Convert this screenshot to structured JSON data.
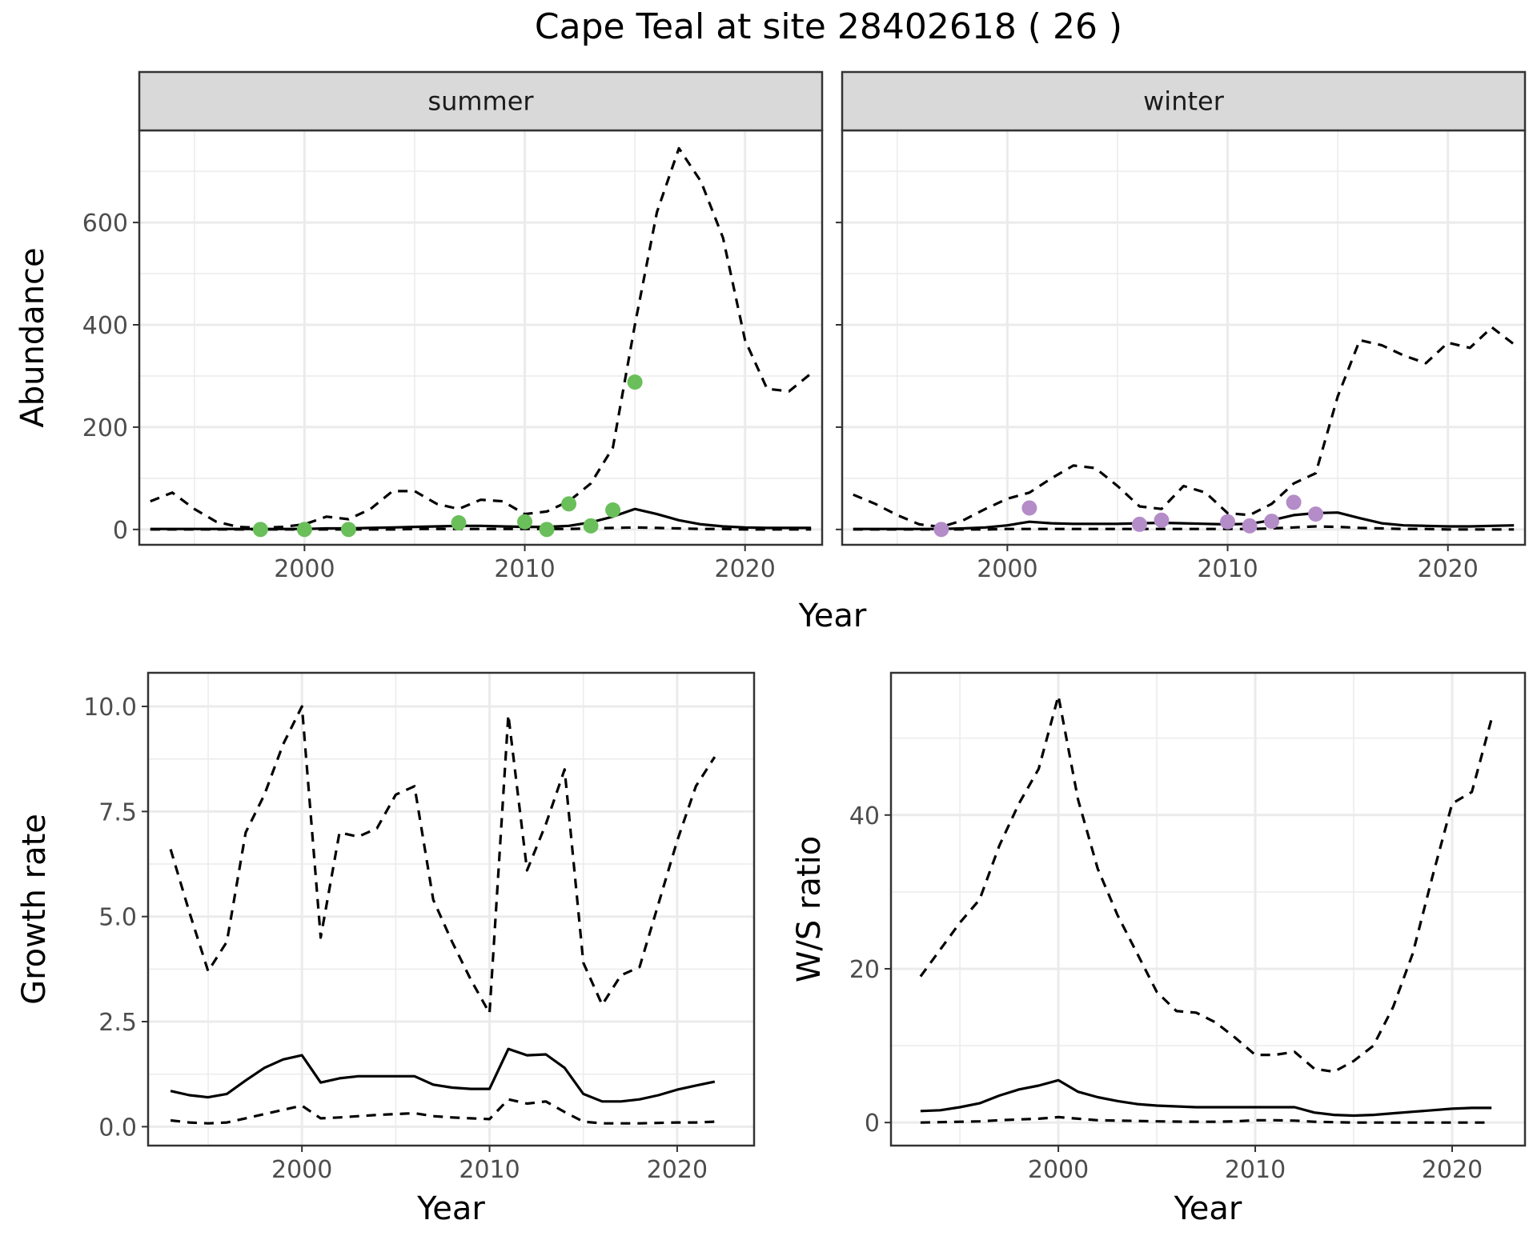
{
  "title": "Cape Teal at site 28402618 ( 26 )",
  "colors": {
    "summer_points": "#6ABF5A",
    "winter_points": "#B48CC8",
    "line": "#000000",
    "strip_fill": "#D9D9D9",
    "grid": "#EBEBEB"
  },
  "chart_data": [
    {
      "type": "line",
      "panel": "summer",
      "strip_label": "summer",
      "xlabel": "Year",
      "ylabel": "Abundance",
      "xlim": [
        1992.5,
        2023.5
      ],
      "ylim": [
        -30,
        780
      ],
      "xticks": [
        2000,
        2010,
        2020
      ],
      "yticks": [
        0,
        200,
        400,
        600
      ],
      "grid": true,
      "x": [
        1993,
        1994,
        1995,
        1996,
        1997,
        1998,
        1999,
        2000,
        2001,
        2002,
        2003,
        2004,
        2005,
        2006,
        2007,
        2008,
        2009,
        2010,
        2011,
        2012,
        2013,
        2014,
        2015,
        2016,
        2017,
        2018,
        2019,
        2020,
        2021,
        2022,
        2023
      ],
      "series": [
        {
          "style": "solid",
          "values": [
            1,
            1,
            1,
            1,
            1,
            1,
            1,
            1,
            2,
            2,
            3,
            4,
            5,
            6,
            7,
            7,
            6,
            5,
            5,
            7,
            14,
            25,
            40,
            30,
            18,
            10,
            6,
            4,
            3,
            3,
            3
          ]
        },
        {
          "style": "dashed",
          "values": [
            55,
            72,
            40,
            15,
            5,
            3,
            5,
            10,
            25,
            20,
            40,
            75,
            75,
            50,
            40,
            58,
            55,
            30,
            35,
            55,
            90,
            160,
            400,
            620,
            745,
            680,
            570,
            370,
            275,
            270,
            305
          ]
        },
        {
          "style": "dashed",
          "values": [
            0,
            0,
            0,
            0,
            0,
            0,
            0,
            0,
            0,
            0,
            0,
            0,
            1,
            1,
            1,
            1,
            1,
            1,
            1,
            1,
            2,
            3,
            4,
            3,
            2,
            1,
            1,
            0,
            0,
            0,
            0
          ]
        }
      ],
      "points": {
        "x": [
          1998,
          2000,
          2002,
          2007,
          2010,
          2011,
          2012,
          2013,
          2014,
          2015
        ],
        "y": [
          0,
          0,
          0,
          13,
          15,
          0,
          50,
          7,
          38,
          288
        ]
      }
    },
    {
      "type": "line",
      "panel": "winter",
      "strip_label": "winter",
      "xlabel": "Year",
      "ylabel": "Abundance",
      "xlim": [
        1992.5,
        2023.5
      ],
      "ylim": [
        -30,
        780
      ],
      "xticks": [
        2000,
        2010,
        2020
      ],
      "yticks": [
        0,
        200,
        400,
        600
      ],
      "grid": true,
      "x": [
        1993,
        1994,
        1995,
        1996,
        1997,
        1998,
        1999,
        2000,
        2001,
        2002,
        2003,
        2004,
        2005,
        2006,
        2007,
        2008,
        2009,
        2010,
        2011,
        2012,
        2013,
        2014,
        2015,
        2016,
        2017,
        2018,
        2019,
        2020,
        2021,
        2022,
        2023
      ],
      "series": [
        {
          "style": "solid",
          "values": [
            1,
            1,
            1,
            1,
            1,
            2,
            4,
            8,
            15,
            12,
            11,
            11,
            11,
            12,
            13,
            12,
            11,
            10,
            11,
            18,
            28,
            32,
            33,
            22,
            12,
            8,
            7,
            6,
            6,
            7,
            8
          ]
        },
        {
          "style": "dashed",
          "values": [
            68,
            50,
            28,
            10,
            5,
            18,
            40,
            60,
            72,
            100,
            125,
            120,
            85,
            45,
            40,
            85,
            72,
            32,
            28,
            50,
            90,
            110,
            260,
            370,
            360,
            340,
            325,
            365,
            355,
            395,
            362
          ]
        },
        {
          "style": "dashed",
          "values": [
            0,
            0,
            0,
            0,
            0,
            0,
            0,
            1,
            1,
            1,
            1,
            1,
            1,
            1,
            1,
            1,
            1,
            1,
            1,
            2,
            4,
            6,
            5,
            3,
            2,
            1,
            1,
            0,
            0,
            0,
            0
          ]
        }
      ],
      "points": {
        "x": [
          1997,
          2001,
          2006,
          2007,
          2010,
          2011,
          2012,
          2013,
          2014
        ],
        "y": [
          0,
          42,
          10,
          18,
          15,
          7,
          16,
          53,
          30
        ]
      }
    },
    {
      "type": "line",
      "panel": "growth",
      "xlabel": "Year",
      "ylabel": "Growth rate",
      "xlim": [
        1991.8,
        2024.1
      ],
      "ylim": [
        -0.45,
        10.8
      ],
      "xticks": [
        2000,
        2010,
        2020
      ],
      "yticks": [
        0.0,
        2.5,
        5.0,
        7.5,
        10.0
      ],
      "ytick_labels": [
        "0.0",
        "2.5",
        "5.0",
        "7.5",
        "10.0"
      ],
      "grid": true,
      "x": [
        1993,
        1994,
        1995,
        1996,
        1997,
        1998,
        1999,
        2000,
        2001,
        2002,
        2003,
        2004,
        2005,
        2006,
        2007,
        2008,
        2009,
        2010,
        2011,
        2012,
        2013,
        2014,
        2015,
        2016,
        2017,
        2018,
        2019,
        2020,
        2021,
        2022
      ],
      "series": [
        {
          "style": "solid",
          "values": [
            0.85,
            0.75,
            0.7,
            0.78,
            1.1,
            1.4,
            1.6,
            1.7,
            1.05,
            1.15,
            1.2,
            1.2,
            1.2,
            1.2,
            1.0,
            0.93,
            0.9,
            0.9,
            1.85,
            1.7,
            1.72,
            1.4,
            0.78,
            0.6,
            0.6,
            0.65,
            0.75,
            0.88,
            0.98,
            1.07
          ]
        },
        {
          "style": "dashed",
          "values": [
            6.6,
            5.1,
            3.7,
            4.4,
            7.0,
            7.9,
            9.1,
            10.0,
            4.5,
            7.0,
            6.9,
            7.1,
            7.9,
            8.1,
            5.4,
            4.4,
            3.5,
            2.7,
            9.8,
            6.1,
            7.2,
            8.5,
            3.9,
            2.9,
            3.6,
            3.8,
            5.3,
            6.8,
            8.1,
            8.8
          ]
        },
        {
          "style": "dashed",
          "values": [
            0.15,
            0.1,
            0.08,
            0.1,
            0.2,
            0.3,
            0.4,
            0.5,
            0.2,
            0.22,
            0.25,
            0.28,
            0.3,
            0.32,
            0.25,
            0.22,
            0.2,
            0.18,
            0.65,
            0.55,
            0.6,
            0.35,
            0.12,
            0.08,
            0.08,
            0.08,
            0.09,
            0.1,
            0.1,
            0.12
          ]
        }
      ]
    },
    {
      "type": "line",
      "panel": "ratio",
      "xlabel": "Year",
      "ylabel": "W/S ratio",
      "xlim": [
        1991.5,
        2023.7
      ],
      "ylim": [
        -3,
        58.5
      ],
      "xticks": [
        2000,
        2010,
        2020
      ],
      "yticks": [
        0,
        20,
        40
      ],
      "grid": true,
      "x": [
        1993,
        1994,
        1995,
        1996,
        1997,
        1998,
        1999,
        2000,
        2001,
        2002,
        2003,
        2004,
        2005,
        2006,
        2007,
        2008,
        2009,
        2010,
        2011,
        2012,
        2013,
        2014,
        2015,
        2016,
        2017,
        2018,
        2019,
        2020,
        2021,
        2022
      ],
      "series": [
        {
          "style": "solid",
          "values": [
            1.5,
            1.6,
            2.0,
            2.5,
            3.5,
            4.3,
            4.8,
            5.5,
            4.0,
            3.3,
            2.8,
            2.4,
            2.2,
            2.1,
            2.0,
            2.0,
            2.0,
            2.0,
            2.0,
            2.0,
            1.3,
            1.0,
            0.9,
            1.0,
            1.2,
            1.4,
            1.6,
            1.8,
            1.9,
            1.9
          ]
        },
        {
          "style": "dashed",
          "values": [
            19,
            22.5,
            26,
            29,
            36,
            41.5,
            46,
            55.5,
            42,
            33,
            27,
            22,
            17,
            14.5,
            14.3,
            13,
            11,
            8.8,
            8.8,
            9.2,
            7,
            6.6,
            8,
            10,
            15,
            22,
            32,
            41.5,
            43,
            52.5
          ]
        },
        {
          "style": "dashed",
          "values": [
            0.0,
            0.05,
            0.1,
            0.15,
            0.3,
            0.4,
            0.5,
            0.7,
            0.5,
            0.3,
            0.25,
            0.2,
            0.15,
            0.12,
            0.1,
            0.1,
            0.15,
            0.3,
            0.3,
            0.25,
            0.1,
            0.05,
            0.0,
            0.0,
            0.0,
            0.0,
            0.0,
            0.0,
            0.0,
            0.0
          ]
        }
      ]
    }
  ]
}
